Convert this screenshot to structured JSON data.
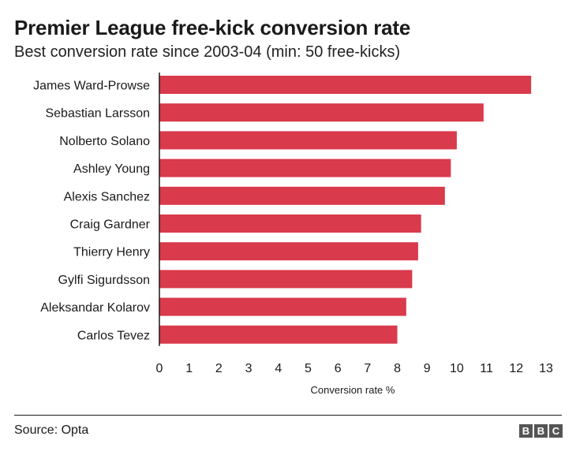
{
  "header": {
    "title": "Premier League free-kick conversion rate",
    "subtitle": "Best conversion rate since 2003-04 (min: 50 free-kicks)"
  },
  "footer": {
    "source": "Source: Opta",
    "logo_letters": [
      "B",
      "B",
      "C"
    ]
  },
  "colors": {
    "bar": "#d93a4c",
    "axis": "#1a1a1a",
    "text": "#1a1a1a"
  },
  "chart_data": {
    "type": "bar",
    "orientation": "horizontal",
    "title": "Premier League free-kick conversion rate",
    "subtitle": "Best conversion rate since 2003-04 (min: 50 free-kicks)",
    "xlabel": "Conversion rate %",
    "ylabel": "",
    "xlim": [
      0,
      13
    ],
    "xticks": [
      0,
      1,
      2,
      3,
      4,
      5,
      6,
      7,
      8,
      9,
      10,
      11,
      12,
      13
    ],
    "grid": false,
    "legend": "none",
    "categories": [
      "James Ward-Prowse",
      "Sebastian Larsson",
      "Nolberto Solano",
      "Ashley Young",
      "Alexis Sanchez",
      "Craig Gardner",
      "Thierry Henry",
      "Gylfi Sigurdsson",
      "Aleksandar Kolarov",
      "Carlos Tevez"
    ],
    "values": [
      12.5,
      10.9,
      10.0,
      9.8,
      9.6,
      8.8,
      8.7,
      8.5,
      8.3,
      8.0
    ]
  }
}
